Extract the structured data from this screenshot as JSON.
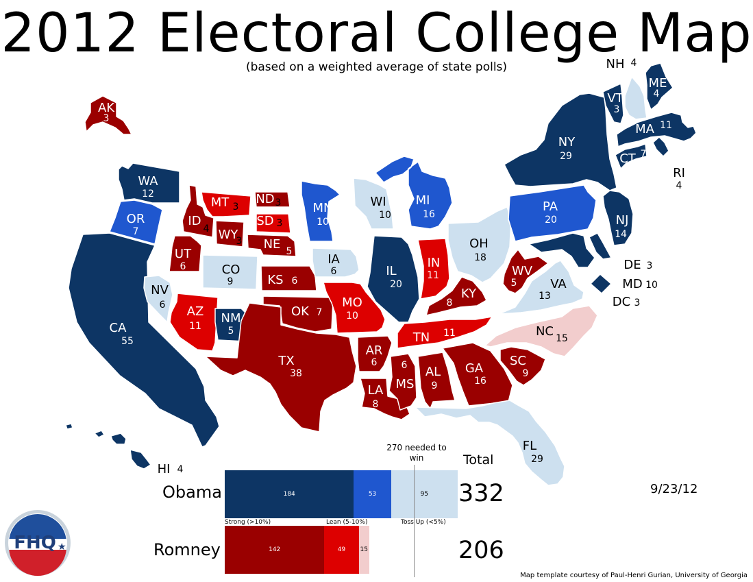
{
  "title": "2012 Electoral College Map",
  "subtitle": "(based on a weighted average of state polls)",
  "legend_colors": {
    "obama_strong": "#0d3564",
    "obama_lean": "#1f57cf",
    "toss_up_obama": "#cde0ef",
    "toss_up_romney": "#f2cdcd",
    "romney_lean": "#dd0000",
    "romney_strong": "#9a0000"
  },
  "states": [
    {
      "abbr": "WA",
      "ev": "12",
      "rating": "obama_strong"
    },
    {
      "abbr": "OR",
      "ev": "7",
      "rating": "obama_lean"
    },
    {
      "abbr": "CA",
      "ev": "55",
      "rating": "obama_strong"
    },
    {
      "abbr": "NV",
      "ev": "6",
      "rating": "toss_up_obama"
    },
    {
      "abbr": "ID",
      "ev": "4",
      "rating": "romney_strong"
    },
    {
      "abbr": "MT",
      "ev": "3",
      "rating": "romney_lean"
    },
    {
      "abbr": "WY",
      "ev": "3",
      "rating": "romney_strong"
    },
    {
      "abbr": "UT",
      "ev": "6",
      "rating": "romney_strong"
    },
    {
      "abbr": "CO",
      "ev": "9",
      "rating": "toss_up_obama"
    },
    {
      "abbr": "AZ",
      "ev": "11",
      "rating": "romney_lean"
    },
    {
      "abbr": "NM",
      "ev": "5",
      "rating": "obama_strong"
    },
    {
      "abbr": "ND",
      "ev": "3",
      "rating": "romney_strong"
    },
    {
      "abbr": "SD",
      "ev": "3",
      "rating": "romney_lean"
    },
    {
      "abbr": "NE",
      "ev": "5",
      "rating": "romney_strong"
    },
    {
      "abbr": "KS",
      "ev": "6",
      "rating": "romney_strong"
    },
    {
      "abbr": "OK",
      "ev": "7",
      "rating": "romney_strong"
    },
    {
      "abbr": "TX",
      "ev": "38",
      "rating": "romney_strong"
    },
    {
      "abbr": "MN",
      "ev": "10",
      "rating": "obama_lean"
    },
    {
      "abbr": "IA",
      "ev": "6",
      "rating": "toss_up_obama"
    },
    {
      "abbr": "MO",
      "ev": "10",
      "rating": "romney_lean"
    },
    {
      "abbr": "AR",
      "ev": "6",
      "rating": "romney_strong"
    },
    {
      "abbr": "LA",
      "ev": "8",
      "rating": "romney_strong"
    },
    {
      "abbr": "WI",
      "ev": "10",
      "rating": "toss_up_obama"
    },
    {
      "abbr": "IL",
      "ev": "20",
      "rating": "obama_strong"
    },
    {
      "abbr": "MI",
      "ev": "16",
      "rating": "obama_lean"
    },
    {
      "abbr": "IN",
      "ev": "11",
      "rating": "romney_lean"
    },
    {
      "abbr": "OH",
      "ev": "18",
      "rating": "toss_up_obama"
    },
    {
      "abbr": "KY",
      "ev": "8",
      "rating": "romney_strong"
    },
    {
      "abbr": "TN",
      "ev": "11",
      "rating": "romney_lean"
    },
    {
      "abbr": "MS",
      "ev": "6",
      "rating": "romney_strong"
    },
    {
      "abbr": "AL",
      "ev": "9",
      "rating": "romney_strong"
    },
    {
      "abbr": "GA",
      "ev": "16",
      "rating": "romney_strong"
    },
    {
      "abbr": "FL",
      "ev": "29",
      "rating": "toss_up_obama"
    },
    {
      "abbr": "SC",
      "ev": "9",
      "rating": "romney_strong"
    },
    {
      "abbr": "NC",
      "ev": "15",
      "rating": "toss_up_romney"
    },
    {
      "abbr": "VA",
      "ev": "13",
      "rating": "toss_up_obama"
    },
    {
      "abbr": "WV",
      "ev": "5",
      "rating": "romney_strong"
    },
    {
      "abbr": "PA",
      "ev": "20",
      "rating": "obama_lean"
    },
    {
      "abbr": "NY",
      "ev": "29",
      "rating": "obama_strong"
    },
    {
      "abbr": "NJ",
      "ev": "14",
      "rating": "obama_strong"
    },
    {
      "abbr": "DE",
      "ev": "3",
      "rating": "obama_strong"
    },
    {
      "abbr": "MD",
      "ev": "10",
      "rating": "obama_strong"
    },
    {
      "abbr": "DC",
      "ev": "3",
      "rating": "obama_strong"
    },
    {
      "abbr": "CT",
      "ev": "7",
      "rating": "obama_strong"
    },
    {
      "abbr": "RI",
      "ev": "4",
      "rating": "obama_strong"
    },
    {
      "abbr": "MA",
      "ev": "11",
      "rating": "obama_strong"
    },
    {
      "abbr": "VT",
      "ev": "3",
      "rating": "obama_strong"
    },
    {
      "abbr": "NH",
      "ev": "4",
      "rating": "toss_up_obama"
    },
    {
      "abbr": "ME",
      "ev": "4",
      "rating": "obama_strong"
    },
    {
      "abbr": "AK",
      "ev": "3",
      "rating": "romney_strong"
    },
    {
      "abbr": "HI",
      "ev": "4",
      "rating": "obama_strong"
    }
  ],
  "tally": {
    "needed_label": "270 needed to win",
    "total_header": "Total",
    "obama": {
      "name": "Obama",
      "total": "332",
      "strong": 184,
      "lean": 53,
      "toss_up": 95
    },
    "romney": {
      "name": "Romney",
      "total": "206",
      "strong": 142,
      "lean": 49,
      "toss_up": 15
    },
    "captions": {
      "strong": "Strong (>10%)",
      "lean": "Lean (5-10%)",
      "toss_up": "Toss Up (<5%)"
    }
  },
  "date": "9/23/12",
  "credit": "Map template courtesy of Paul-Henri Gurian, University of Georgia",
  "logo_text": "FHQ"
}
